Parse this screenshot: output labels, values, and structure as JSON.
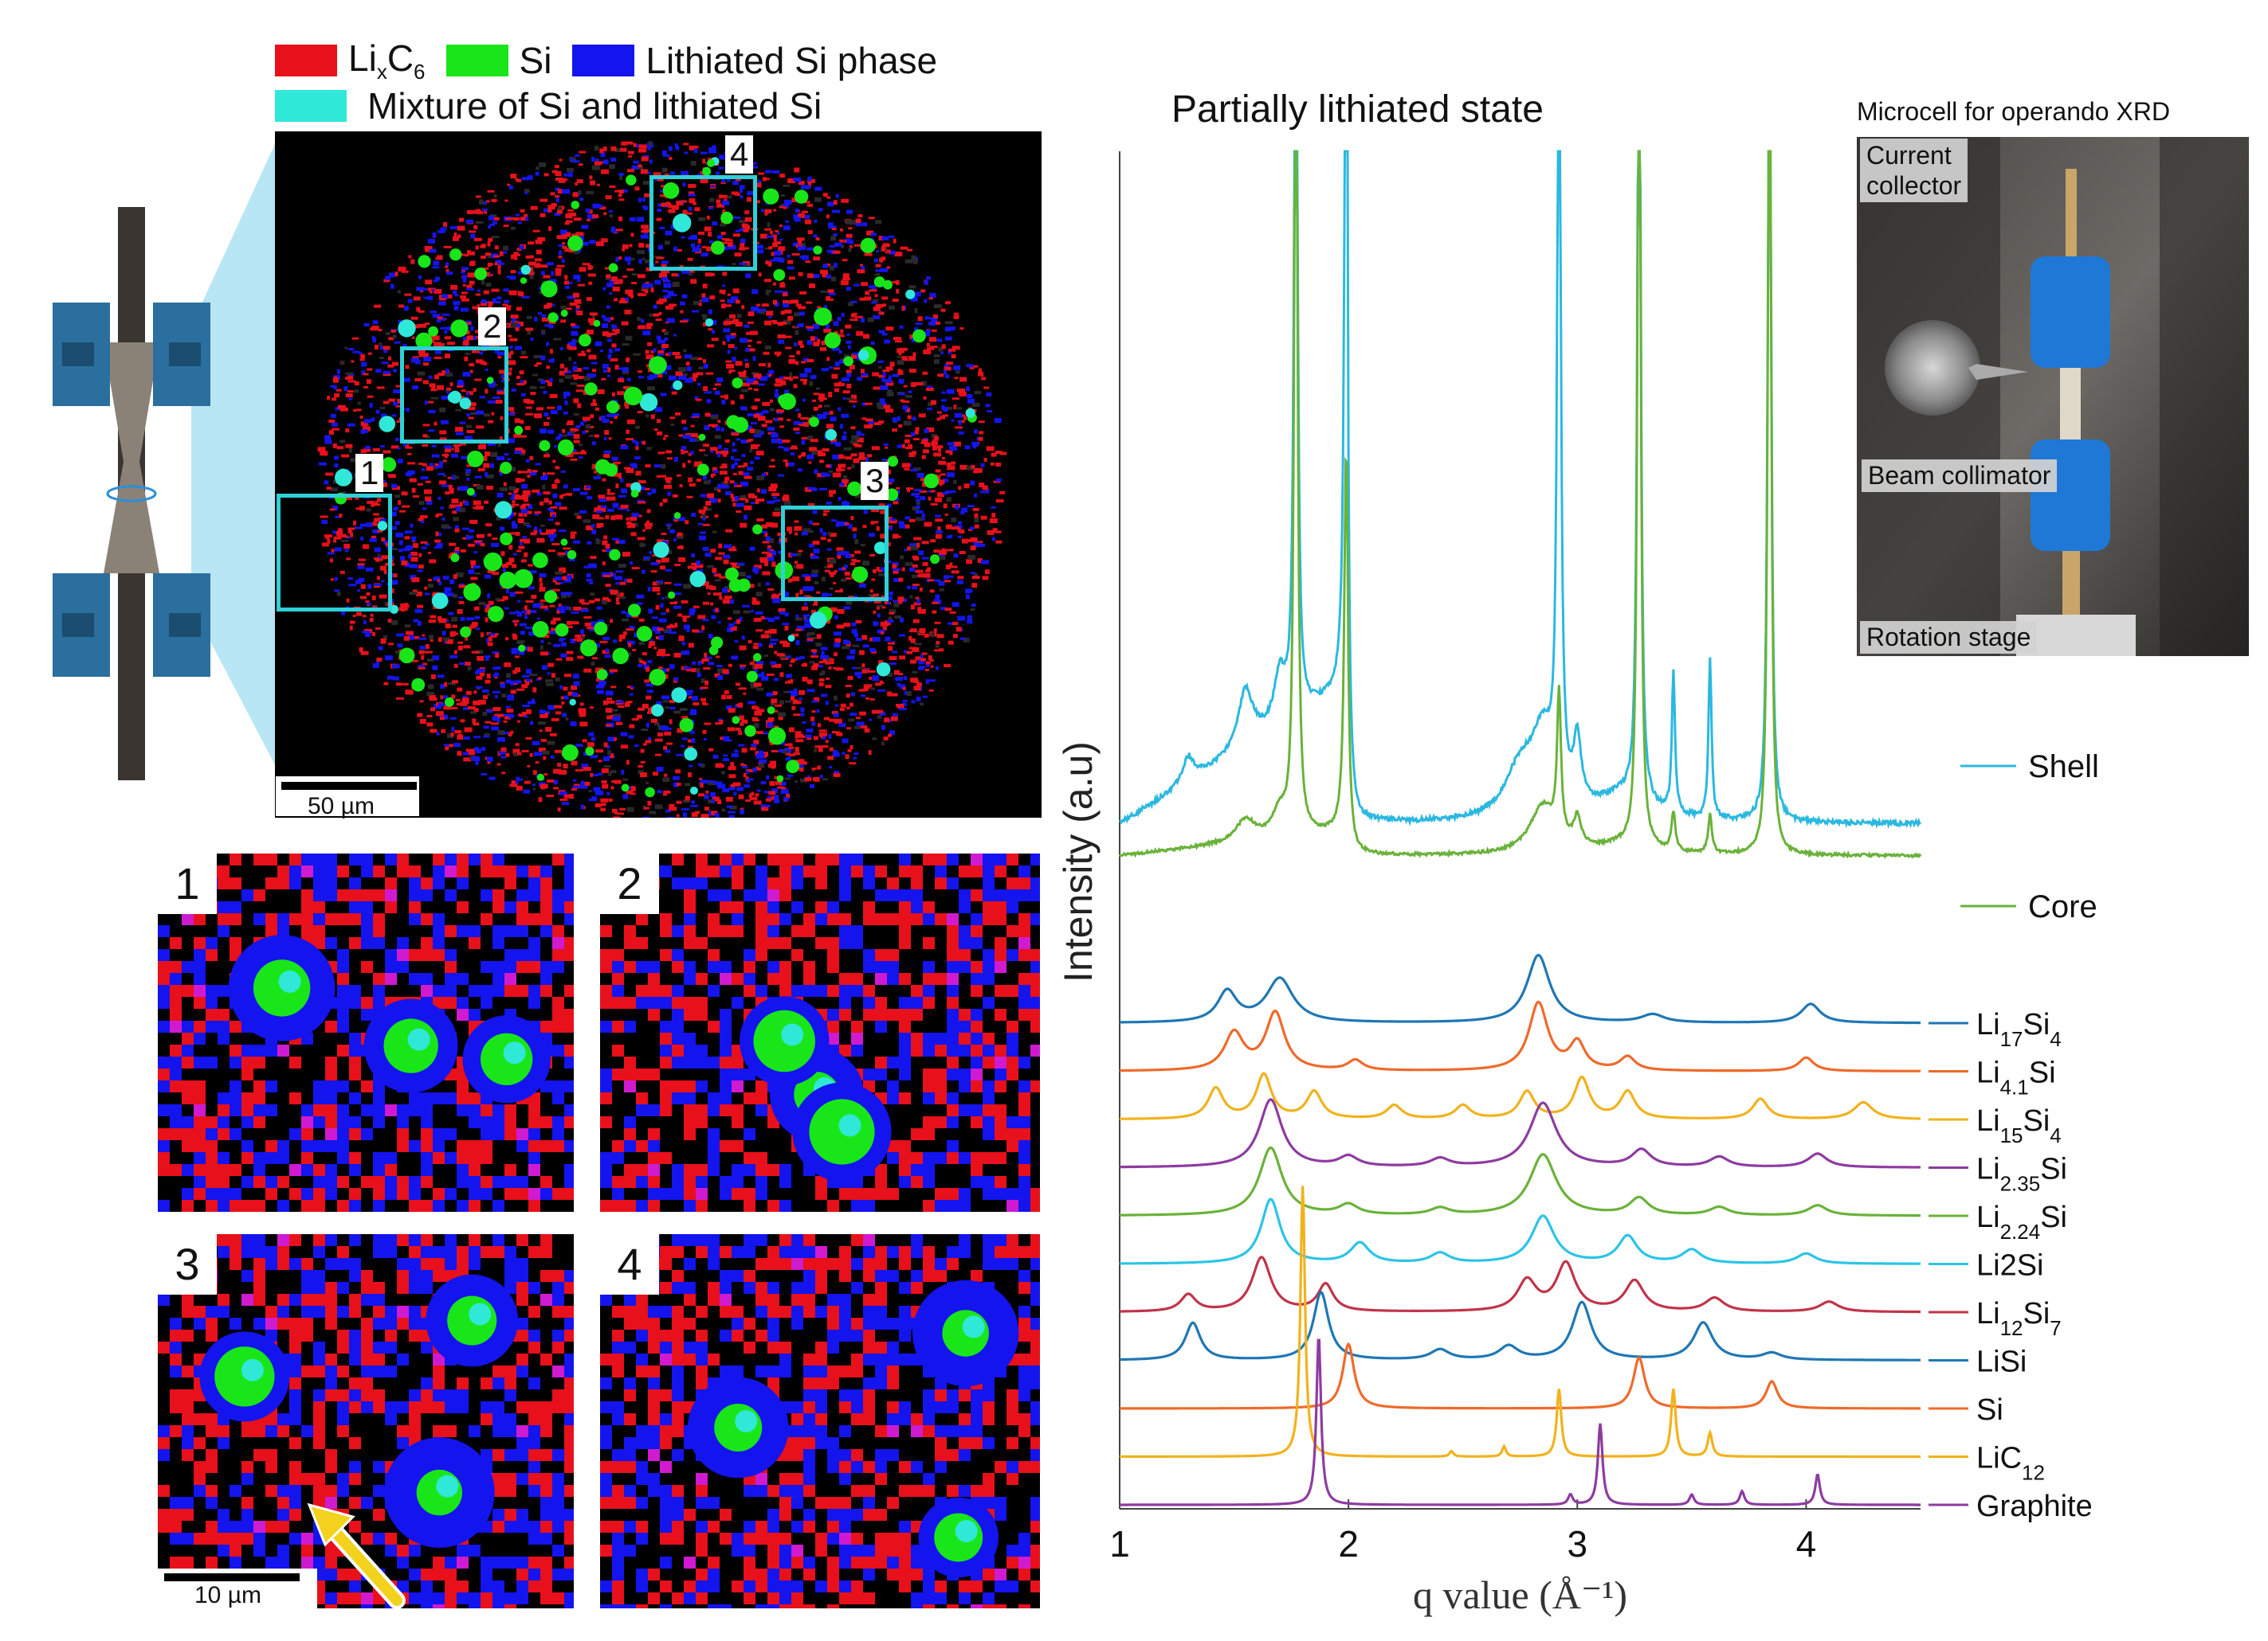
{
  "legend": {
    "items": [
      {
        "label_main": "Li",
        "label_sub1": "x",
        "label_mid": "C",
        "label_sub2": "6",
        "color": "#e8101a"
      },
      {
        "label": "Si",
        "color": "#19e619"
      },
      {
        "label": "Lithiated Si phase",
        "color": "#1414ee"
      }
    ],
    "mixture": {
      "label": "Mixture of Si and lithiated Si",
      "color": "#2fe8d8"
    }
  },
  "map": {
    "scale_bar": "50 µm",
    "zoom_boxes": [
      "1",
      "2",
      "3",
      "4"
    ]
  },
  "insets": {
    "labels": [
      "1",
      "2",
      "3",
      "4"
    ],
    "scale_bar": "10 µm"
  },
  "photo": {
    "title": "Microcell for operando XRD",
    "labels": {
      "current_collector": "Current\ncollector",
      "beam_collimator": "Beam collimator",
      "rotation_stage": "Rotation stage"
    }
  },
  "chart_data": {
    "type": "line",
    "title": "Partially lithiated state",
    "xlabel": "q value (Å⁻¹)",
    "ylabel": "Intensity (a.u)",
    "xlim": [
      1,
      4.5
    ],
    "xticks": [
      1,
      2,
      3,
      4
    ],
    "measured": [
      {
        "name": "Shell",
        "color": "#2bb8e0"
      },
      {
        "name": "Core",
        "color": "#6ab23a"
      }
    ],
    "references": [
      {
        "name": "Li17Si4",
        "base": "Li",
        "sub1": "17",
        "mid": "Si",
        "sub2": "4",
        "color": "#1f77b4",
        "peaks": [
          [
            1.47,
            0.45,
            0.05
          ],
          [
            1.7,
            0.65,
            0.07
          ],
          [
            2.83,
            1.0,
            0.06
          ],
          [
            3.33,
            0.12,
            0.06
          ],
          [
            4.02,
            0.28,
            0.05
          ]
        ]
      },
      {
        "name": "Li4.1Si",
        "base": "Li",
        "sub1": "4.1",
        "mid": "Si",
        "sub2": "",
        "color": "#ef6a2a",
        "peaks": [
          [
            1.5,
            0.55,
            0.05
          ],
          [
            1.68,
            0.85,
            0.05
          ],
          [
            2.03,
            0.15,
            0.04
          ],
          [
            2.83,
            1.0,
            0.05
          ],
          [
            3.0,
            0.4,
            0.04
          ],
          [
            3.22,
            0.2,
            0.04
          ],
          [
            4.0,
            0.2,
            0.04
          ]
        ]
      },
      {
        "name": "Li15Si4",
        "base": "Li",
        "sub1": "15",
        "mid": "Si",
        "sub2": "4",
        "color": "#f2b21c",
        "peaks": [
          [
            1.42,
            0.45,
            0.04
          ],
          [
            1.63,
            0.65,
            0.04
          ],
          [
            1.85,
            0.4,
            0.04
          ],
          [
            2.2,
            0.2,
            0.04
          ],
          [
            2.5,
            0.2,
            0.04
          ],
          [
            2.78,
            0.4,
            0.04
          ],
          [
            3.02,
            0.6,
            0.04
          ],
          [
            3.22,
            0.4,
            0.04
          ],
          [
            3.8,
            0.3,
            0.04
          ],
          [
            4.25,
            0.25,
            0.05
          ]
        ]
      },
      {
        "name": "Li2.35Si",
        "base": "Li",
        "sub1": "2.35",
        "mid": "Si",
        "sub2": "",
        "color": "#8e3ba0",
        "peaks": [
          [
            1.66,
            1.0,
            0.06
          ],
          [
            2.0,
            0.15,
            0.05
          ],
          [
            2.4,
            0.12,
            0.05
          ],
          [
            2.85,
            0.95,
            0.07
          ],
          [
            3.28,
            0.25,
            0.05
          ],
          [
            3.62,
            0.15,
            0.05
          ],
          [
            4.05,
            0.2,
            0.05
          ]
        ]
      },
      {
        "name": "Li2.24Si",
        "base": "Li",
        "sub1": "2.24",
        "mid": "Si",
        "sub2": "",
        "color": "#6ab23a",
        "peaks": [
          [
            1.66,
            1.0,
            0.06
          ],
          [
            2.0,
            0.15,
            0.05
          ],
          [
            2.4,
            0.1,
            0.05
          ],
          [
            2.85,
            0.9,
            0.07
          ],
          [
            3.27,
            0.25,
            0.05
          ],
          [
            3.62,
            0.12,
            0.05
          ],
          [
            4.05,
            0.15,
            0.05
          ]
        ]
      },
      {
        "name": "Li2Si",
        "base": "Li",
        "sub1": "",
        "mid": "2Si",
        "sub2": "",
        "color": "#2bc4e8",
        "peaks": [
          [
            1.66,
            0.95,
            0.05
          ],
          [
            2.05,
            0.3,
            0.05
          ],
          [
            2.4,
            0.15,
            0.05
          ],
          [
            2.85,
            0.7,
            0.06
          ],
          [
            3.22,
            0.4,
            0.05
          ],
          [
            3.5,
            0.2,
            0.05
          ],
          [
            4.0,
            0.15,
            0.05
          ]
        ]
      },
      {
        "name": "Li12Si7",
        "base": "Li",
        "sub1": "12",
        "mid": "Si",
        "sub2": "7",
        "color": "#c0344a",
        "peaks": [
          [
            1.3,
            0.25,
            0.04
          ],
          [
            1.62,
            0.8,
            0.05
          ],
          [
            1.9,
            0.4,
            0.04
          ],
          [
            2.78,
            0.45,
            0.05
          ],
          [
            2.95,
            0.7,
            0.05
          ],
          [
            3.25,
            0.45,
            0.05
          ],
          [
            3.6,
            0.2,
            0.05
          ],
          [
            4.1,
            0.15,
            0.05
          ]
        ]
      },
      {
        "name": "LiSi",
        "base": "Li",
        "sub1": "",
        "mid": "Si",
        "sub2": "",
        "color": "#1f77b4",
        "peaks": [
          [
            1.32,
            0.55,
            0.04
          ],
          [
            1.88,
            1.0,
            0.04
          ],
          [
            2.4,
            0.15,
            0.05
          ],
          [
            2.7,
            0.2,
            0.05
          ],
          [
            3.02,
            0.85,
            0.05
          ],
          [
            3.55,
            0.55,
            0.05
          ],
          [
            3.85,
            0.1,
            0.05
          ]
        ]
      },
      {
        "name": "Si",
        "base": "Si",
        "sub1": "",
        "mid": "",
        "sub2": "",
        "color": "#ef6a2a",
        "peaks": [
          [
            2.0,
            0.95,
            0.03
          ],
          [
            3.27,
            0.75,
            0.03
          ],
          [
            3.85,
            0.4,
            0.03
          ]
        ]
      },
      {
        "name": "LiC12",
        "base": "LiC",
        "sub1": "12",
        "mid": "",
        "sub2": "",
        "color": "#f2b21c",
        "peaks": [
          [
            1.8,
            4.0,
            0.012
          ],
          [
            2.45,
            0.08,
            0.01
          ],
          [
            2.68,
            0.15,
            0.01
          ],
          [
            2.92,
            1.0,
            0.012
          ],
          [
            3.42,
            1.0,
            0.012
          ],
          [
            3.58,
            0.35,
            0.012
          ]
        ]
      },
      {
        "name": "Graphite",
        "base": "Graphite",
        "sub1": "",
        "mid": "",
        "sub2": "",
        "color": "#8e3ba0",
        "peaks": [
          [
            1.87,
            2.5,
            0.012
          ],
          [
            2.97,
            0.15,
            0.012
          ],
          [
            3.1,
            1.2,
            0.012
          ],
          [
            3.5,
            0.15,
            0.012
          ],
          [
            3.72,
            0.2,
            0.012
          ],
          [
            4.05,
            0.45,
            0.012
          ]
        ]
      }
    ]
  }
}
